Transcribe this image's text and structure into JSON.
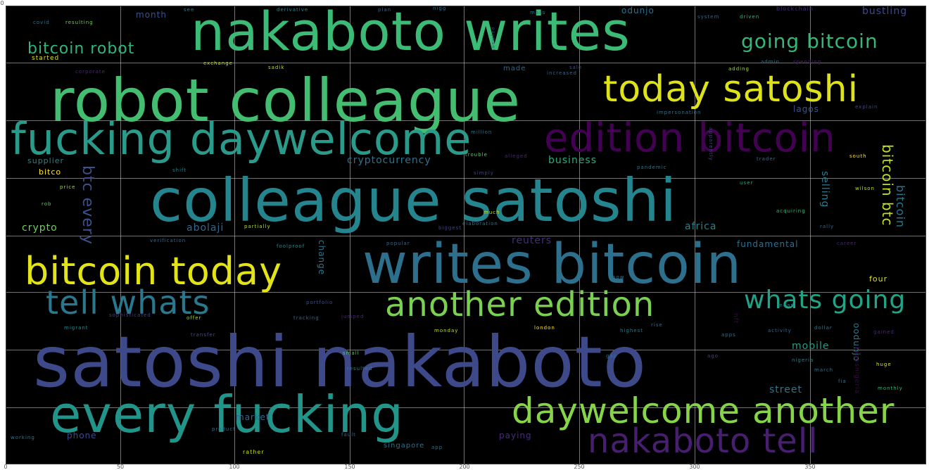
{
  "axis": {
    "x_ticks": [
      "0",
      "50",
      "100",
      "150",
      "200",
      "250",
      "300",
      "350"
    ],
    "y_ticks": [
      "0"
    ]
  },
  "words": [
    {
      "text": "nakaboto writes",
      "color": "#3bbb75"
    },
    {
      "text": "robot colleague",
      "color": "#43be71"
    },
    {
      "text": "today satoshi",
      "color": "#dde318"
    },
    {
      "text": "fucking daywelcome",
      "color": "#2a9a8a"
    },
    {
      "text": "edition bitcoin",
      "color": "#440154"
    },
    {
      "text": "colleague satoshi",
      "color": "#25858e"
    },
    {
      "text": "writes bitcoin",
      "color": "#2d708e"
    },
    {
      "text": "bitcoin today",
      "color": "#e3e418"
    },
    {
      "text": "tell whats",
      "color": "#2a788e"
    },
    {
      "text": "another edition",
      "color": "#7ad151"
    },
    {
      "text": "whats going",
      "color": "#20a386"
    },
    {
      "text": "satoshi nakaboto",
      "color": "#3e4989"
    },
    {
      "text": "every fucking",
      "color": "#22958b"
    },
    {
      "text": "daywelcome another",
      "color": "#86d549"
    },
    {
      "text": "nakaboto tell",
      "color": "#481f70"
    },
    {
      "text": "going bitcoin",
      "color": "#35b779"
    },
    {
      "text": "bitcoin robot",
      "color": "#31b57b"
    },
    {
      "text": "bitcoin btc",
      "color": "#c2df23"
    },
    {
      "text": "btc every",
      "color": "#3b528b"
    },
    {
      "text": "bitcoin",
      "color": "#2a788e"
    },
    {
      "text": "cryptocurrency",
      "color": "#2c728e"
    },
    {
      "text": "business",
      "color": "#28ae80"
    },
    {
      "text": "crypto",
      "color": "#6ece58"
    },
    {
      "text": "abolaji",
      "color": "#31688e"
    },
    {
      "text": "africa",
      "color": "#25838e"
    },
    {
      "text": "reuters",
      "color": "#472c7a"
    },
    {
      "text": "fundamental",
      "color": "#2e6f8e"
    },
    {
      "text": "mobile",
      "color": "#1f9e89"
    },
    {
      "text": "street",
      "color": "#2a788e"
    },
    {
      "text": "market",
      "color": "#31688e"
    },
    {
      "text": "phone",
      "color": "#3e4a89"
    },
    {
      "text": "paying",
      "color": "#472c7a"
    },
    {
      "text": "singapore",
      "color": "#2c728e"
    },
    {
      "text": "selling",
      "color": "#287c8e"
    },
    {
      "text": "supplier",
      "color": "#26828e"
    },
    {
      "text": "bitco",
      "color": "#fde725"
    },
    {
      "text": "month",
      "color": "#3b528b"
    },
    {
      "text": "odunjo",
      "color": "#2c728e"
    },
    {
      "text": "bustling",
      "color": "#3e4989"
    },
    {
      "text": "lagos",
      "color": "#3b528b"
    },
    {
      "text": "made",
      "color": "#31688e"
    },
    {
      "text": "change",
      "color": "#2a788e"
    },
    {
      "text": "oodunjo",
      "color": "#2a788e"
    },
    {
      "text": "covid",
      "color": "#2c728e"
    },
    {
      "text": "resulting",
      "color": "#75d054"
    },
    {
      "text": "started",
      "color": "#dde318"
    },
    {
      "text": "derivative",
      "color": "#25858e"
    },
    {
      "text": "plan",
      "color": "#31688e"
    },
    {
      "text": "blockchain",
      "color": "#472c7a"
    },
    {
      "text": "driven",
      "color": "#35b779"
    },
    {
      "text": "exchange",
      "color": "#b5de2b"
    },
    {
      "text": "corporate",
      "color": "#482878"
    },
    {
      "text": "see",
      "color": "#2a788e"
    },
    {
      "text": "lagosnigeria",
      "color": "#440154"
    },
    {
      "text": "explain",
      "color": "#3e4989"
    },
    {
      "text": "price",
      "color": "#a0da39"
    },
    {
      "text": "rob",
      "color": "#5ec962"
    },
    {
      "text": "shift",
      "color": "#26828e"
    },
    {
      "text": "popular",
      "color": "#31688e"
    },
    {
      "text": "biggest",
      "color": "#414487"
    },
    {
      "text": "monday",
      "color": "#b5de2b"
    },
    {
      "text": "london",
      "color": "#fde725"
    },
    {
      "text": "highest",
      "color": "#2a788e"
    },
    {
      "text": "activity",
      "color": "#31688e"
    },
    {
      "text": "dollar",
      "color": "#2a788e"
    },
    {
      "text": "gained",
      "color": "#482878"
    },
    {
      "text": "nigeria",
      "color": "#26828e"
    },
    {
      "text": "march",
      "color": "#2c728e"
    },
    {
      "text": "huge",
      "color": "#dde318"
    },
    {
      "text": "monthly",
      "color": "#35b779"
    },
    {
      "text": "migrant",
      "color": "#21918c"
    },
    {
      "text": "offer",
      "color": "#a0da39"
    },
    {
      "text": "transfer",
      "color": "#3b528b"
    },
    {
      "text": "tracking",
      "color": "#31688e"
    },
    {
      "text": "jumped",
      "color": "#482878"
    },
    {
      "text": "small",
      "color": "#5ec962"
    },
    {
      "text": "resulted",
      "color": "#26828e"
    },
    {
      "text": "product",
      "color": "#2c728e"
    },
    {
      "text": "rather",
      "color": "#c2df23"
    },
    {
      "text": "working",
      "color": "#2a788e"
    },
    {
      "text": "app",
      "color": "#2c728e"
    },
    {
      "text": "acquiring",
      "color": "#35b779"
    },
    {
      "text": "rally",
      "color": "#31688e"
    },
    {
      "text": "wilson",
      "color": "#b5de2b"
    },
    {
      "text": "south",
      "color": "#fde725"
    },
    {
      "text": "trader",
      "color": "#31688e"
    },
    {
      "text": "pandemic",
      "color": "#2a788e"
    },
    {
      "text": "alleged",
      "color": "#482878"
    },
    {
      "text": "trouble",
      "color": "#5ec962"
    },
    {
      "text": "simply",
      "color": "#414487"
    },
    {
      "text": "much",
      "color": "#c2df23"
    },
    {
      "text": "million",
      "color": "#2c728e"
    },
    {
      "text": "foolproof",
      "color": "#21918c"
    },
    {
      "text": "verification",
      "color": "#31688e"
    },
    {
      "text": "partially",
      "color": "#b5de2b"
    },
    {
      "text": "elaboration",
      "color": "#2c728e"
    },
    {
      "text": "portfolio",
      "color": "#3b528b"
    },
    {
      "text": "sophisticated",
      "color": "#414487"
    },
    {
      "text": "adding",
      "color": "#a0da39"
    },
    {
      "text": "admin",
      "color": "#2a788e"
    },
    {
      "text": "spending",
      "color": "#482878"
    },
    {
      "text": "impersonation",
      "color": "#2a788e"
    },
    {
      "text": "increased",
      "color": "#31688e"
    },
    {
      "text": "sadik",
      "color": "#b5de2b"
    },
    {
      "text": "nigg",
      "color": "#2c728e"
    },
    {
      "text": "apparently",
      "color": "#414487"
    },
    {
      "text": "user",
      "color": "#22a884"
    },
    {
      "text": "four",
      "color": "#dde318"
    },
    {
      "text": "apps",
      "color": "#2c728e"
    },
    {
      "text": "rise",
      "color": "#31688e"
    },
    {
      "text": "fia",
      "color": "#2a788e"
    },
    {
      "text": "nft",
      "color": "#440154"
    },
    {
      "text": "ago",
      "color": "#414487"
    },
    {
      "text": "sale",
      "color": "#3b528b"
    },
    {
      "text": "mass",
      "color": "#2c728e"
    },
    {
      "text": "system",
      "color": "#31688e"
    },
    {
      "text": "career",
      "color": "#482878"
    },
    {
      "text": "know",
      "color": "#2a788e"
    },
    {
      "text": "mean",
      "color": "#26828e"
    },
    {
      "text": "payment",
      "color": "#414487"
    },
    {
      "text": "fault",
      "color": "#31688e"
    },
    {
      "text": "gap",
      "color": "#2c728e"
    }
  ]
}
